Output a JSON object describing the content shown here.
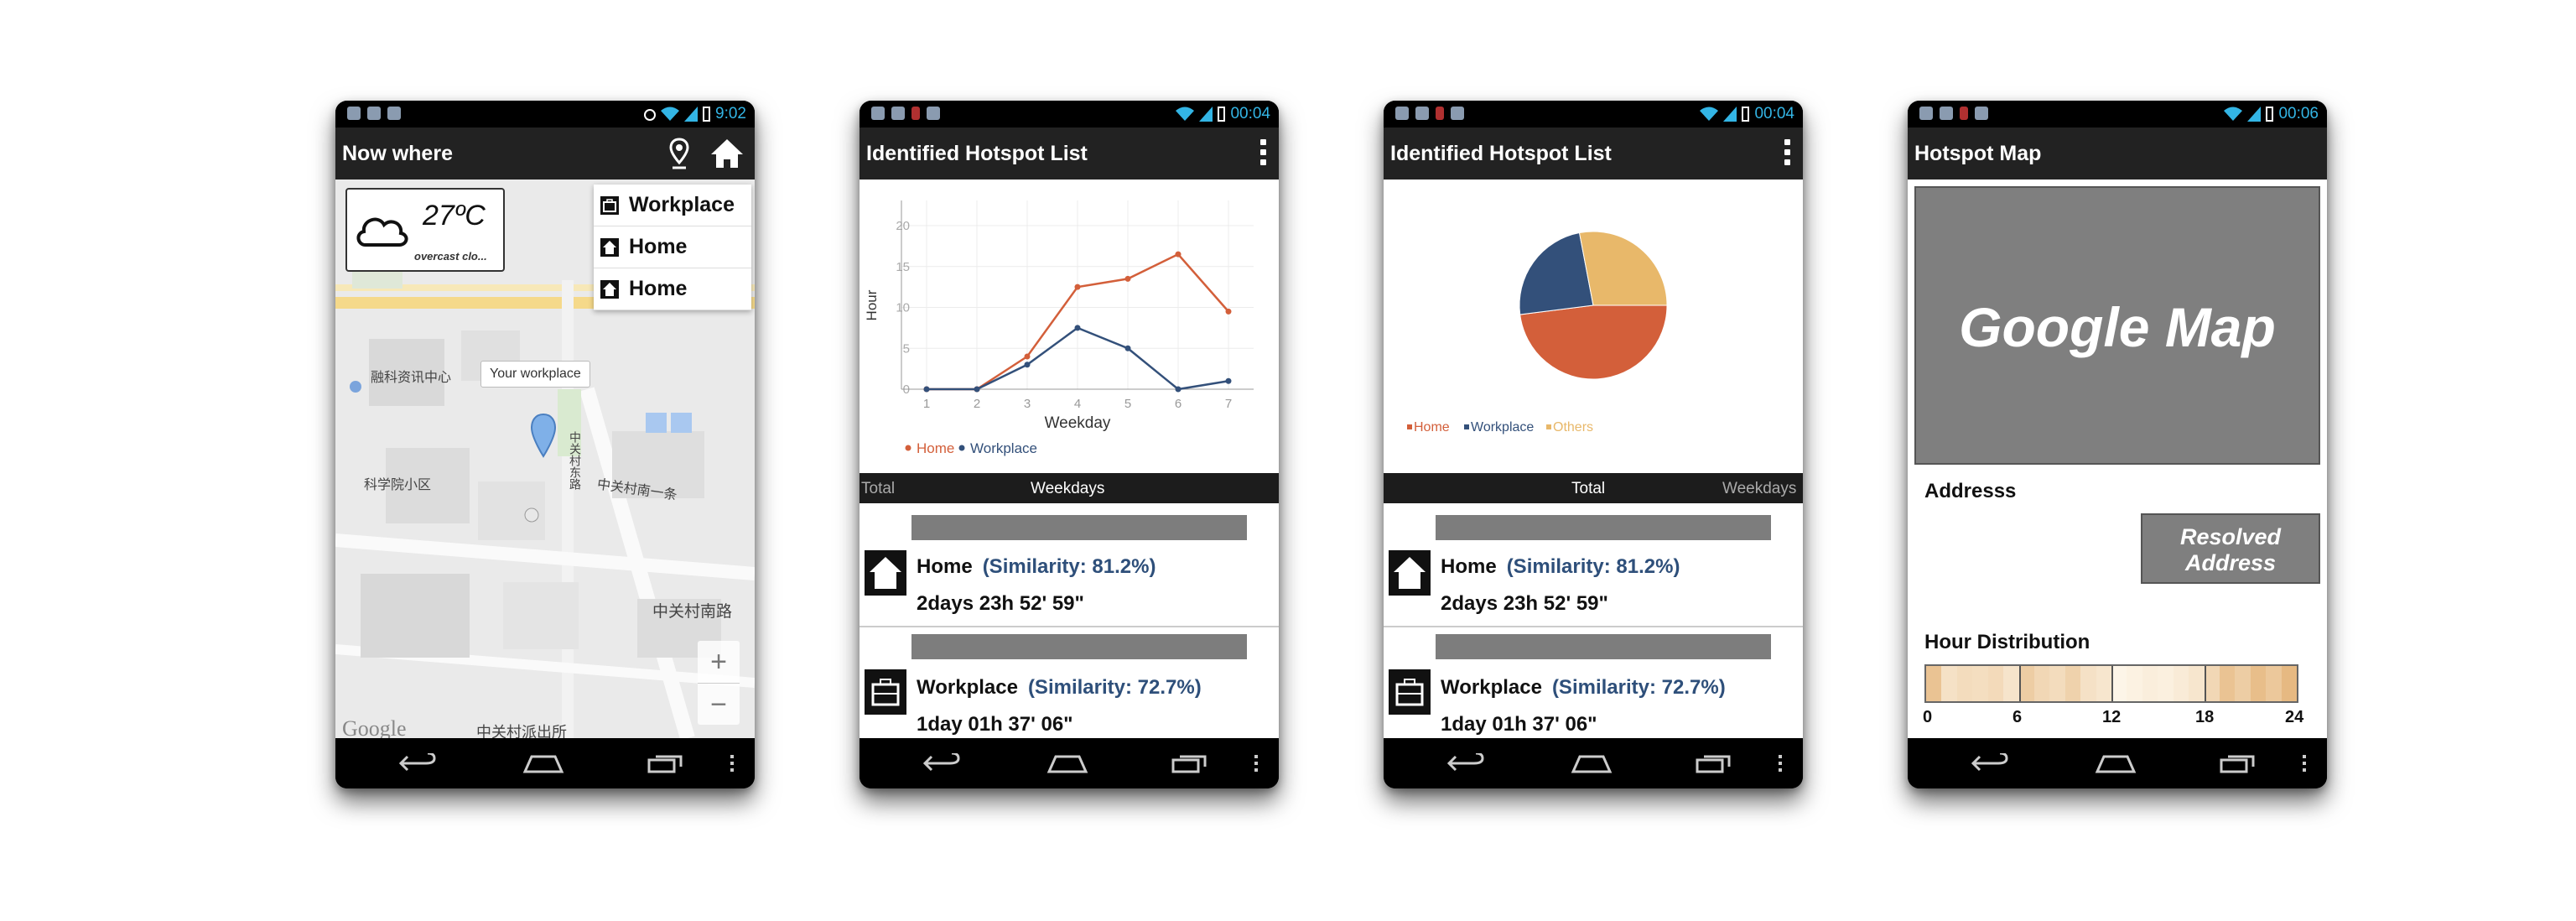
{
  "phone1": {
    "status_time": "9:02",
    "title": "Now where",
    "weather": {
      "temperature": "27ºC",
      "condition": "overcast clo..."
    },
    "menu": [
      "Workplace",
      "Home",
      "Home"
    ],
    "callout": "Your workplace",
    "map_labels": [
      "融科资讯中心",
      "科学院小区",
      "中关村南一条",
      "中关村南路",
      "中关村派出所",
      "中关村东路"
    ],
    "zoom_in": "+",
    "zoom_out": "−",
    "map_brand": "Google"
  },
  "phone2": {
    "status_time": "00:04",
    "title": "Identified Hotspot List",
    "tabs": {
      "total": "Total",
      "weekdays": "Weekdays"
    },
    "list": [
      {
        "name": "Home",
        "similarity": "(Similarity: 81.2%)",
        "duration": "2days 23h 52' 59\""
      },
      {
        "name": "Workplace",
        "similarity": "(Similarity: 72.7%)",
        "duration": "1day 01h 37' 06\""
      }
    ]
  },
  "phone3": {
    "status_time": "00:04",
    "title": "Identified Hotspot List",
    "tabs": {
      "total": "Total",
      "weekdays": "Weekdays"
    },
    "list": [
      {
        "name": "Home",
        "similarity": "(Similarity: 81.2%)",
        "duration": "2days 23h 52' 59\""
      },
      {
        "name": "Workplace",
        "similarity": "(Similarity: 72.7%)",
        "duration": "1day 01h 37' 06\""
      }
    ]
  },
  "phone4": {
    "status_time": "00:06",
    "title": "Hotspot Map",
    "map_placeholder": "Google Map",
    "address_label": "Addresss",
    "resolved_line1": "Resolved",
    "resolved_line2": "Address",
    "hour_label": "Hour Distribution",
    "hour_ticks": [
      "0",
      "6",
      "12",
      "18",
      "24"
    ],
    "hour_intensity": [
      0.55,
      0.25,
      0.3,
      0.28,
      0.32,
      0.22,
      0.45,
      0.35,
      0.3,
      0.4,
      0.25,
      0.2,
      0.05,
      0.08,
      0.12,
      0.1,
      0.15,
      0.2,
      0.35,
      0.55,
      0.45,
      0.6,
      0.5,
      0.65
    ]
  },
  "colors": {
    "home": "#d35f3a",
    "workplace": "#33507a",
    "others": "#e8b86a",
    "sim": "#2e4f7a"
  },
  "chart_data": [
    {
      "type": "line",
      "x": [
        1,
        2,
        3,
        4,
        5,
        6,
        7
      ],
      "series": [
        {
          "name": "Home",
          "values": [
            0,
            0,
            4,
            12.5,
            13.5,
            16.5,
            9.5
          ]
        },
        {
          "name": "Workplace",
          "values": [
            0,
            0,
            3,
            7.5,
            5,
            0,
            1
          ]
        }
      ],
      "xlabel": "Weekday",
      "ylabel": "Hour",
      "xticks": [
        "1",
        "2",
        "3",
        "4",
        "5",
        "6",
        "7"
      ],
      "yticks": [
        "0",
        "5",
        "10",
        "15",
        "20"
      ],
      "ylim": [
        0,
        20
      ],
      "legend": "bottom-left",
      "grid": true
    },
    {
      "type": "pie",
      "categories": [
        "Home",
        "Workplace",
        "Others"
      ],
      "values": [
        48,
        24,
        28
      ],
      "legend": "bottom-left"
    }
  ]
}
